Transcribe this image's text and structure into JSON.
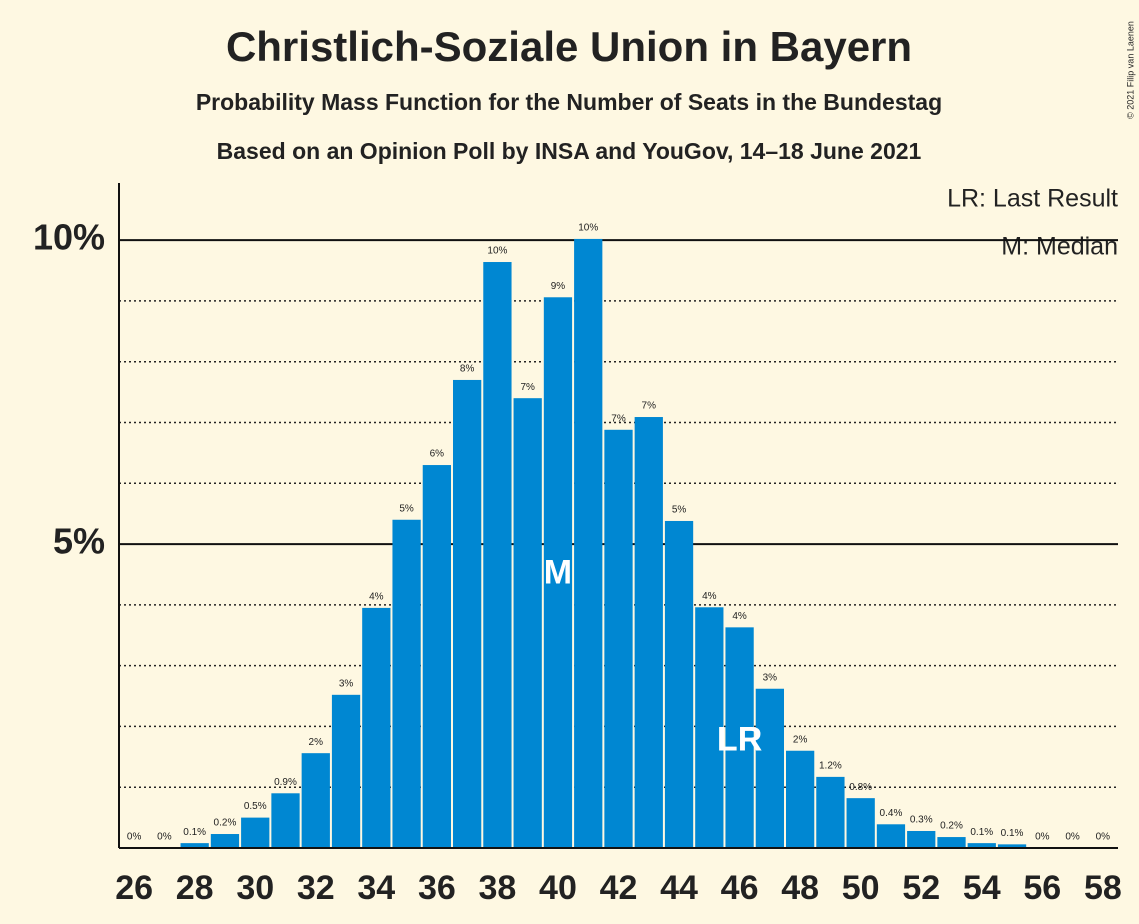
{
  "chart_data": {
    "type": "bar",
    "title": "Christlich-Soziale Union in Bayern",
    "subtitle": "Probability Mass Function for the Number of Seats in the Bundestag",
    "subtitle2": "Based on an Opinion Poll by INSA and YouGov, 14–18 June 2021",
    "copyright": "© 2021 Filip van Laenen",
    "legend": [
      "LR: Last Result",
      "M: Median"
    ],
    "color": "#0087d2",
    "x": [
      26,
      27,
      28,
      29,
      30,
      31,
      32,
      33,
      34,
      35,
      36,
      37,
      38,
      39,
      40,
      41,
      42,
      43,
      44,
      45,
      46,
      47,
      48,
      49,
      50,
      51,
      52,
      53,
      54,
      55,
      56,
      57,
      58
    ],
    "values": [
      0,
      0,
      0.08,
      0.23,
      0.5,
      0.9,
      1.56,
      2.52,
      3.95,
      5.4,
      6.3,
      7.7,
      9.64,
      7.4,
      9.06,
      10.02,
      6.88,
      7.09,
      5.38,
      3.96,
      3.63,
      2.62,
      1.6,
      1.17,
      0.82,
      0.39,
      0.28,
      0.18,
      0.08,
      0.06,
      0,
      0,
      0
    ],
    "value_labels": [
      "0%",
      "0%",
      "0.1%",
      "0.2%",
      "0.5%",
      "0.9%",
      "2%",
      "3%",
      "4%",
      "5%",
      "6%",
      "8%",
      "10%",
      "7%",
      "9%",
      "10%",
      "7%",
      "7%",
      "5%",
      "4%",
      "4%",
      "3%",
      "2%",
      "1.2%",
      "0.8%",
      "0.4%",
      "0.3%",
      "0.2%",
      "0.1%",
      "0.1%",
      "0%",
      "0%",
      "0%"
    ],
    "xlim": [
      25.5,
      58.5
    ],
    "xticks": [
      26,
      28,
      30,
      32,
      34,
      36,
      38,
      40,
      42,
      44,
      46,
      48,
      50,
      52,
      54,
      56,
      58
    ],
    "ylim": [
      0,
      10.94
    ],
    "yticks": [
      {
        "value": 5,
        "label": "5%"
      },
      {
        "value": 10,
        "label": "10%"
      }
    ],
    "minor_yticks": [
      1,
      2,
      3,
      4,
      6,
      7,
      8,
      9
    ],
    "markers": [
      {
        "label": "M",
        "x": 40,
        "y": 4.5
      },
      {
        "label": "LR",
        "x": 46,
        "y": 1.75
      }
    ]
  }
}
